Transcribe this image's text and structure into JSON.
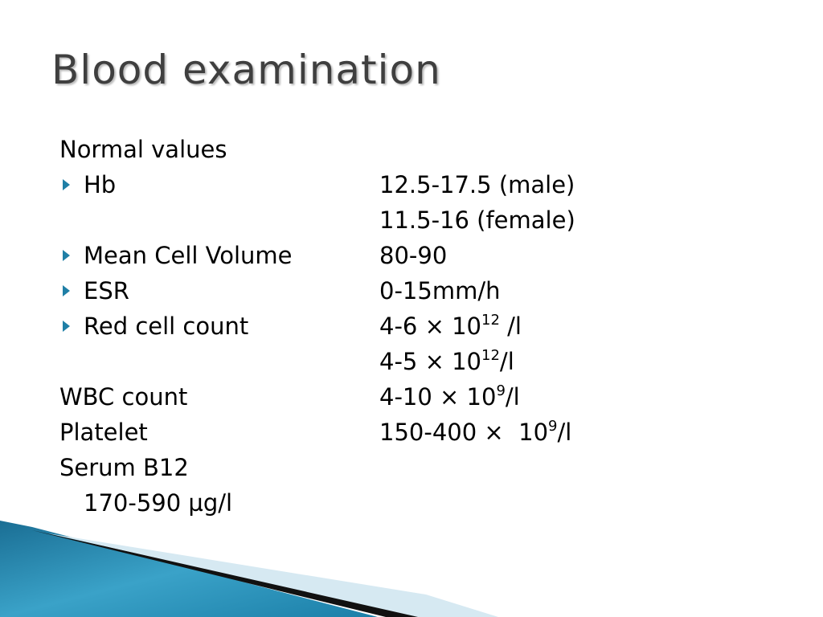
{
  "title": "Blood examination",
  "rows": [
    {
      "label": "Normal values"
    },
    {
      "bullet": true,
      "label": "Hb",
      "value": [
        {
          "text": "12.5-17.5 (male)"
        }
      ]
    },
    {
      "value": [
        {
          "text": "11.5-16 (female)"
        }
      ]
    },
    {
      "bullet": true,
      "label": "Mean Cell Volume",
      "value": [
        {
          "text": "80-90"
        }
      ]
    },
    {
      "bullet": true,
      "label": "ESR",
      "value": [
        {
          "text": "0-15mm/h"
        }
      ]
    },
    {
      "bullet": true,
      "label": "Red cell count",
      "value": [
        {
          "text": "4-6 × 10"
        },
        {
          "sup": "12"
        },
        {
          "text": " /l"
        }
      ]
    },
    {
      "value": [
        {
          "text": "4-5 × 10"
        },
        {
          "sup": "12"
        },
        {
          "text": "/l"
        }
      ]
    },
    {
      "label": "WBC count",
      "value": [
        {
          "text": "4-10 × 10"
        },
        {
          "sup": "9"
        },
        {
          "text": "/l"
        }
      ]
    },
    {
      "label": "Platelet",
      "value": [
        {
          "text": "150-400 ×  10"
        },
        {
          "sup": "9"
        },
        {
          "text": "/l"
        }
      ]
    },
    {
      "label": "Serum B12"
    },
    {
      "indent": true,
      "label": "170-590 µg/l"
    }
  ]
}
